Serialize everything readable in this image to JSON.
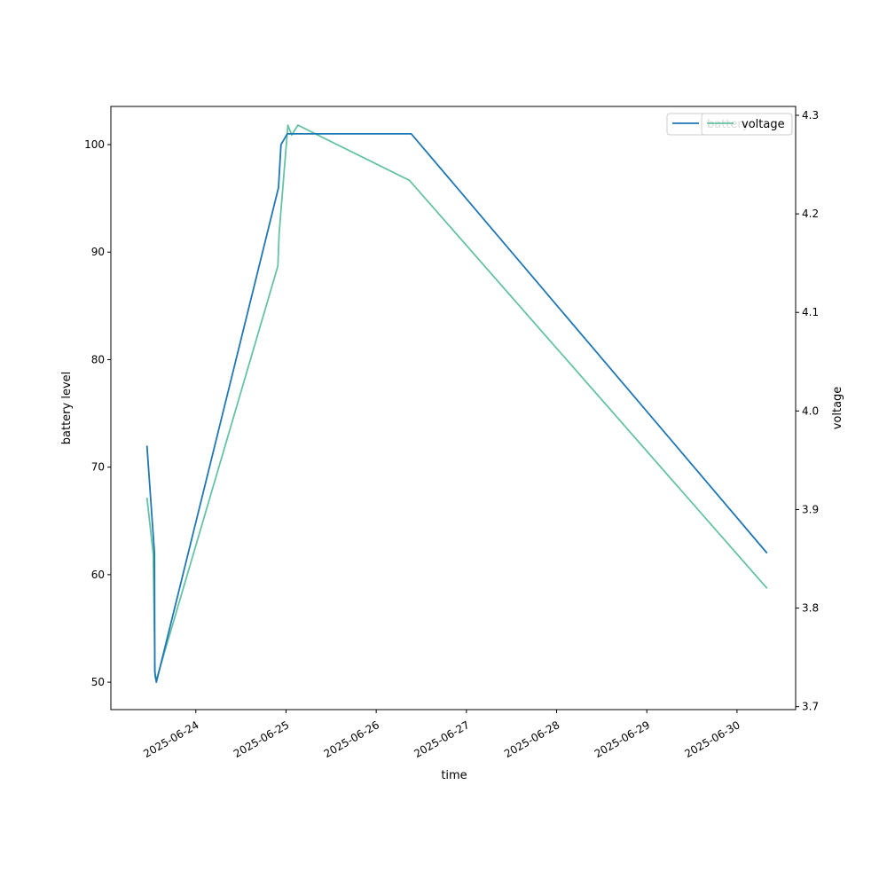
{
  "chart_data": {
    "type": "line",
    "xlabel": "time",
    "ylabel_left": "battery level",
    "ylabel_right": "voltage",
    "xlim": [
      "2025-06-23 01:24",
      "2025-06-30 15:36"
    ],
    "ylim_left": [
      47.45,
      103.55
    ],
    "ylim_right": [
      3.697,
      4.309
    ],
    "x_ticks": [
      "2025-06-24",
      "2025-06-25",
      "2025-06-26",
      "2025-06-27",
      "2025-06-28",
      "2025-06-29",
      "2025-06-30"
    ],
    "y_ticks_left": [
      50,
      60,
      70,
      80,
      90,
      100
    ],
    "y_ticks_right": [
      3.7,
      3.8,
      3.9,
      4.0,
      4.1,
      4.2,
      4.3
    ],
    "grid": false,
    "legends": [
      {
        "placement": "top-right",
        "entries": [
          "battery"
        ]
      },
      {
        "placement": "top-right",
        "entries": [
          "voltage"
        ]
      }
    ],
    "series": [
      {
        "name": "battery",
        "axis": "left",
        "color": "#1f77b4",
        "x": [
          "2025-06-23 11:00",
          "2025-06-23 13:00",
          "2025-06-23 13:05",
          "2025-06-23 13:30",
          "2025-06-24 22:00",
          "2025-06-24 22:40",
          "2025-06-25 00:20",
          "2025-06-26 09:20",
          "2025-06-30 08:00"
        ],
        "y": [
          72,
          62,
          51,
          50,
          96,
          100,
          101,
          101,
          62
        ]
      },
      {
        "name": "voltage",
        "axis": "right",
        "color": "#66c2a5",
        "x": [
          "2025-06-23 11:00",
          "2025-06-23 12:40",
          "2025-06-23 13:10",
          "2025-06-23 13:30",
          "2025-06-24 21:50",
          "2025-06-24 22:10",
          "2025-06-25 00:30",
          "2025-06-25 01:30",
          "2025-06-25 03:10",
          "2025-06-26 08:50",
          "2025-06-30 08:00"
        ],
        "y": [
          3.912,
          3.855,
          3.73,
          3.727,
          4.147,
          4.18,
          4.29,
          4.28,
          4.29,
          4.234,
          3.82
        ]
      }
    ]
  }
}
